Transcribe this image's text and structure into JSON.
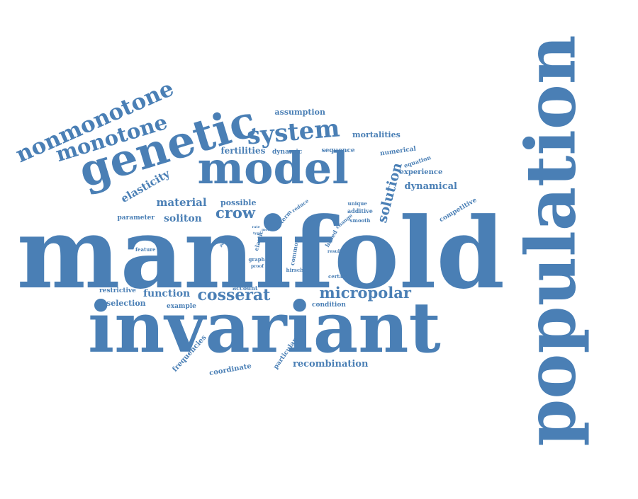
{
  "style": {
    "word_color": "#4a7fb5",
    "background": "#ffffff"
  },
  "words": [
    {
      "id": "manifold",
      "text": "manifold"
    },
    {
      "id": "invariant",
      "text": "invariant"
    },
    {
      "id": "population",
      "text": "population"
    },
    {
      "id": "model",
      "text": "model"
    },
    {
      "id": "genetic",
      "text": "genetic"
    },
    {
      "id": "system",
      "text": "system"
    },
    {
      "id": "monotone",
      "text": "monotone"
    },
    {
      "id": "nonmonotone",
      "text": "nonmonotone"
    },
    {
      "id": "cosserat",
      "text": "cosserat"
    },
    {
      "id": "micropolar",
      "text": "micropolar"
    },
    {
      "id": "crow",
      "text": "crow"
    },
    {
      "id": "solution",
      "text": "solution"
    },
    {
      "id": "elasticity",
      "text": "elasticity"
    },
    {
      "id": "material",
      "text": "material"
    },
    {
      "id": "soliton",
      "text": "soliton"
    },
    {
      "id": "function",
      "text": "function"
    },
    {
      "id": "dynamical",
      "text": "dynamical"
    },
    {
      "id": "fertilities",
      "text": "fertilities"
    },
    {
      "id": "mortalities",
      "text": "mortalities"
    },
    {
      "id": "assumption",
      "text": "assumption"
    },
    {
      "id": "possible",
      "text": "possible"
    },
    {
      "id": "recombination",
      "text": "recombination"
    },
    {
      "id": "competitive",
      "text": "competitive"
    },
    {
      "id": "frequencies",
      "text": "frequencies"
    },
    {
      "id": "selection",
      "text": "selection"
    },
    {
      "id": "restrictive",
      "text": "restrictive"
    },
    {
      "id": "parameter",
      "text": "parameter"
    },
    {
      "id": "experience",
      "text": "experience"
    },
    {
      "id": "sequence",
      "text": "sequence"
    },
    {
      "id": "numerical",
      "text": "numerical"
    },
    {
      "id": "equation",
      "text": "equation"
    },
    {
      "id": "dynamic",
      "text": "dynamic"
    },
    {
      "id": "coordinate",
      "text": "coordinate"
    },
    {
      "id": "particular",
      "text": "particular"
    },
    {
      "id": "condition",
      "text": "condition"
    },
    {
      "id": "additive",
      "text": "additive"
    },
    {
      "id": "example",
      "text": "example"
    },
    {
      "id": "account",
      "text": "account"
    },
    {
      "id": "common",
      "text": "common"
    },
    {
      "id": "elastic",
      "text": "elastic"
    },
    {
      "id": "based",
      "text": "based"
    },
    {
      "id": "term",
      "text": "term"
    },
    {
      "id": "reduce",
      "text": "reduce"
    },
    {
      "id": "change",
      "text": "change"
    },
    {
      "id": "unique",
      "text": "unique"
    },
    {
      "id": "smooth",
      "text": "smooth"
    },
    {
      "id": "feature",
      "text": "feature"
    },
    {
      "id": "certain",
      "text": "certain"
    },
    {
      "id": "hirsch",
      "text": "hirsch"
    },
    {
      "id": "result",
      "text": "result"
    },
    {
      "id": "graph",
      "text": "graph"
    },
    {
      "id": "proof",
      "text": "proof"
    },
    {
      "id": "death",
      "text": "death"
    },
    {
      "id": "point",
      "text": "point"
    },
    {
      "id": "more",
      "text": "more"
    },
    {
      "id": "rate",
      "text": "rate"
    },
    {
      "id": "type",
      "text": "type"
    }
  ]
}
